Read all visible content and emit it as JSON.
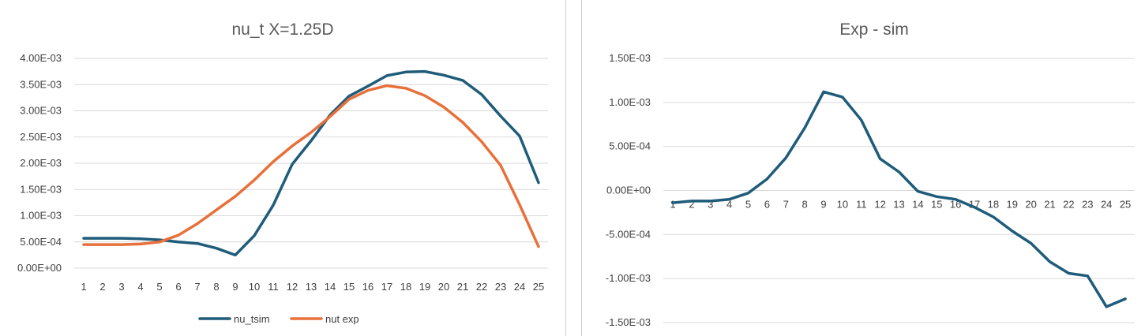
{
  "chart_data": [
    {
      "type": "line",
      "title": "nu_t X=1.25D",
      "xlabel": "",
      "ylabel": "",
      "categories": [
        "1",
        "2",
        "3",
        "4",
        "5",
        "6",
        "7",
        "8",
        "9",
        "10",
        "11",
        "12",
        "13",
        "14",
        "15",
        "16",
        "17",
        "18",
        "19",
        "20",
        "21",
        "22",
        "23",
        "24",
        "25"
      ],
      "y_tick_labels": [
        "0.00E+00",
        "5.00E-04",
        "1.00E-03",
        "1.50E-03",
        "2.00E-03",
        "2.50E-03",
        "3.00E-03",
        "3.50E-03",
        "4.00E-03"
      ],
      "ylim": [
        0,
        0.004
      ],
      "grid": true,
      "legend_position": "bottom",
      "series": [
        {
          "name": "nu_tsim",
          "color": "#1f5c7a",
          "values": [
            0.00057,
            0.00057,
            0.00057,
            0.00056,
            0.00054,
            0.0005,
            0.00047,
            0.00038,
            0.00025,
            0.00062,
            0.0012,
            0.00198,
            0.00243,
            0.00292,
            0.00328,
            0.00347,
            0.00367,
            0.00374,
            0.00375,
            0.00368,
            0.00358,
            0.00331,
            0.0029,
            0.00252,
            0.00163
          ]
        },
        {
          "name": "nut exp",
          "color": "#e8703a",
          "values": [
            0.00045,
            0.00045,
            0.00045,
            0.00046,
            0.0005,
            0.00063,
            0.00085,
            0.00111,
            0.00137,
            0.00168,
            0.00203,
            0.00233,
            0.00259,
            0.00289,
            0.00322,
            0.00339,
            0.00348,
            0.00343,
            0.00329,
            0.00307,
            0.00278,
            0.00241,
            0.00196,
            0.00121,
            0.00041
          ]
        }
      ]
    },
    {
      "type": "line",
      "title": "Exp - sim",
      "xlabel": "",
      "ylabel": "",
      "categories": [
        "1",
        "2",
        "3",
        "4",
        "5",
        "6",
        "7",
        "8",
        "9",
        "10",
        "11",
        "12",
        "13",
        "14",
        "15",
        "16",
        "17",
        "18",
        "19",
        "20",
        "21",
        "22",
        "23",
        "24",
        "25"
      ],
      "y_tick_labels": [
        "-1.50E-03",
        "-1.00E-03",
        "-5.00E-04",
        "0.00E+00",
        "5.00E-04",
        "1.00E-03",
        "1.50E-03"
      ],
      "ylim": [
        -0.0015,
        0.0015
      ],
      "grid": true,
      "legend_position": "none",
      "series": [
        {
          "color": "#1f5c7a",
          "values": [
            -0.00014,
            -0.00012,
            -0.00012,
            -0.0001,
            -3e-05,
            0.00013,
            0.00037,
            0.00071,
            0.00112,
            0.00106,
            0.0008,
            0.00036,
            0.00021,
            -1e-05,
            -7e-05,
            -0.0001,
            -0.00019,
            -0.0003,
            -0.00046,
            -0.0006,
            -0.00081,
            -0.00094,
            -0.00097,
            -0.00132,
            -0.00123
          ]
        }
      ]
    }
  ]
}
